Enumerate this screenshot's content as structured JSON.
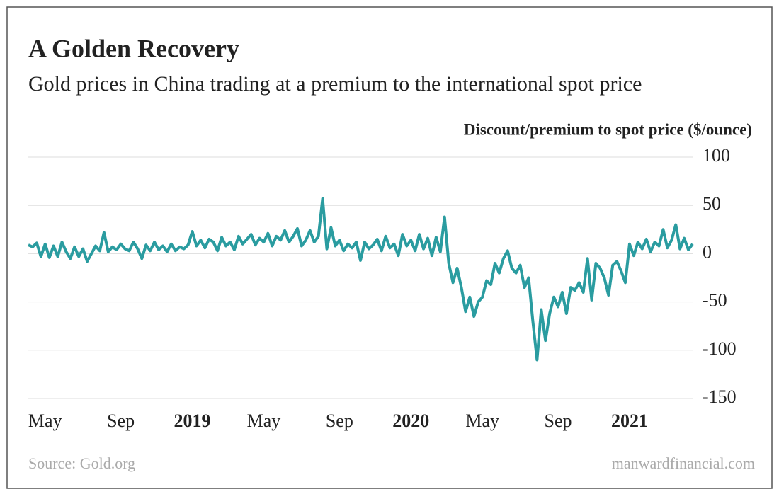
{
  "chart_data": {
    "type": "line",
    "title": "A Golden Recovery",
    "subtitle": "Gold prices in China trading at a premium to the international spot price",
    "y_label": "Discount/premium to spot price ($/ounce)",
    "source": "Source: Gold.org",
    "credit": "manwardfinancial.com",
    "color": "#2a9ca0",
    "grid": true,
    "ylim": [
      -150,
      100
    ],
    "yticks": [
      -150,
      -100,
      -50,
      0,
      50,
      100
    ],
    "categories": [
      null,
      null,
      null,
      null,
      "May",
      null,
      null,
      null,
      null,
      null,
      null,
      null,
      null,
      null,
      null,
      null,
      null,
      null,
      null,
      null,
      null,
      null,
      "Sep",
      null,
      null,
      null,
      null,
      null,
      null,
      null,
      null,
      null,
      null,
      null,
      null,
      null,
      null,
      null,
      null,
      "2019",
      null,
      null,
      null,
      null,
      null,
      null,
      null,
      null,
      null,
      null,
      null,
      null,
      null,
      null,
      null,
      null,
      "May",
      null,
      null,
      null,
      null,
      null,
      null,
      null,
      null,
      null,
      null,
      null,
      null,
      null,
      null,
      null,
      null,
      null,
      "Sep",
      null,
      null,
      null,
      null,
      null,
      null,
      null,
      null,
      null,
      null,
      null,
      null,
      null,
      null,
      null,
      null,
      "2020",
      null,
      null,
      null,
      null,
      null,
      null,
      null,
      null,
      null,
      null,
      null,
      null,
      null,
      null,
      null,
      null,
      "May",
      null,
      null,
      null,
      null,
      null,
      null,
      null,
      null,
      null,
      null,
      null,
      null,
      null,
      null,
      null,
      null,
      null,
      "Sep",
      null,
      null,
      null,
      null,
      null,
      null,
      null,
      null,
      null,
      null,
      null,
      null,
      null,
      null,
      null,
      null,
      "2021",
      null,
      null,
      null,
      null,
      null,
      null,
      null,
      null,
      null,
      null,
      null,
      null,
      null,
      null,
      null
    ],
    "values": [
      9,
      7,
      11,
      -3,
      10,
      -4,
      8,
      -3,
      12,
      2,
      -5,
      7,
      -3,
      5,
      -8,
      0,
      8,
      3,
      22,
      2,
      7,
      4,
      10,
      5,
      3,
      12,
      5,
      -5,
      9,
      3,
      12,
      4,
      8,
      2,
      10,
      3,
      7,
      5,
      9,
      23,
      8,
      14,
      6,
      15,
      12,
      3,
      17,
      8,
      12,
      4,
      18,
      10,
      15,
      20,
      9,
      16,
      12,
      21,
      8,
      18,
      14,
      24,
      12,
      18,
      26,
      8,
      14,
      24,
      12,
      18,
      57,
      5,
      27,
      8,
      14,
      3,
      10,
      6,
      12,
      -7,
      12,
      5,
      9,
      15,
      3,
      18,
      6,
      10,
      -2,
      20,
      8,
      14,
      3,
      20,
      5,
      16,
      -2,
      17,
      2,
      38,
      -10,
      -30,
      -15,
      -35,
      -60,
      -45,
      -65,
      -50,
      -45,
      -28,
      -32,
      -10,
      -20,
      -5,
      3,
      -15,
      -20,
      -12,
      -35,
      -25,
      -70,
      -110,
      -58,
      -90,
      -62,
      -45,
      -55,
      -40,
      -62,
      -35,
      -38,
      -30,
      -40,
      -5,
      -48,
      -10,
      -15,
      -25,
      -43,
      -12,
      -8,
      -18,
      -30,
      10,
      -2,
      12,
      5,
      15,
      2,
      12,
      8,
      25,
      6,
      14,
      30,
      5,
      16,
      4,
      10
    ]
  }
}
